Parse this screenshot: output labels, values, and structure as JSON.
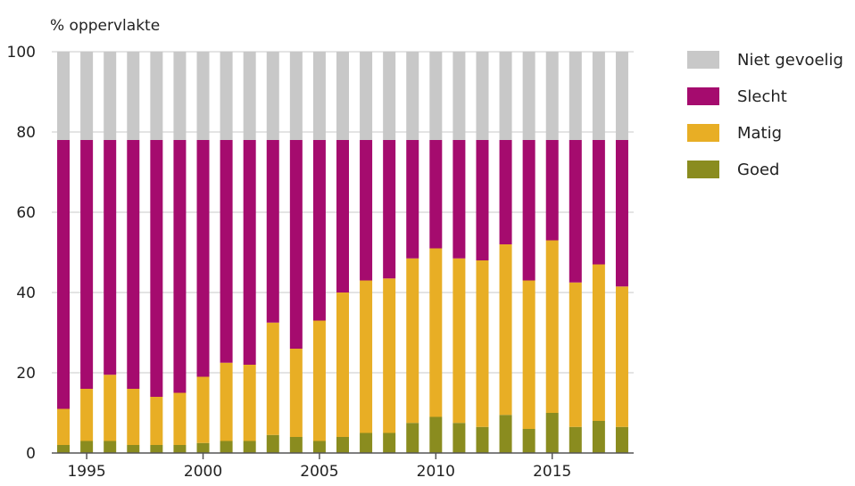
{
  "chart_data": {
    "type": "bar",
    "stacked": true,
    "ylabel": "% oppervlakte",
    "ylim": [
      0,
      100
    ],
    "yticks": [
      0,
      20,
      40,
      60,
      80,
      100
    ],
    "grid": true,
    "x": [
      1994,
      1995,
      1996,
      1997,
      1998,
      1999,
      2000,
      2001,
      2002,
      2003,
      2004,
      2005,
      2006,
      2007,
      2008,
      2009,
      2010,
      2011,
      2012,
      2013,
      2014,
      2015,
      2016,
      2017,
      2018
    ],
    "xticks": [
      {
        "value": 1995,
        "label": "1995"
      },
      {
        "value": 2000,
        "label": "2000"
      },
      {
        "value": 2005,
        "label": "2005"
      },
      {
        "value": 2010,
        "label": "2010"
      },
      {
        "value": 2015,
        "label": "2015"
      }
    ],
    "legend_position": "right",
    "series": [
      {
        "name": "Goed",
        "color": "#8a8c1f",
        "values": [
          2,
          3,
          3,
          2,
          2,
          2,
          2.5,
          3,
          3,
          4.5,
          4,
          3,
          4,
          5,
          5,
          7.5,
          9,
          7.5,
          6.5,
          9.5,
          6,
          10,
          6.5,
          8,
          6.5
        ]
      },
      {
        "name": "Matig",
        "color": "#e8ae25",
        "values": [
          9,
          13,
          16.5,
          14,
          12,
          13,
          16.5,
          19.5,
          19,
          28,
          22,
          30,
          36,
          38,
          38.5,
          41,
          42,
          41,
          41.5,
          42.5,
          37,
          43,
          36,
          39,
          35
        ]
      },
      {
        "name": "Slecht",
        "color": "#a50b6e",
        "values": [
          67,
          62,
          58.5,
          62,
          64,
          63,
          59,
          55.5,
          56,
          45.5,
          52,
          45,
          38,
          35,
          34.5,
          29.5,
          27,
          29.5,
          30,
          26,
          35,
          25,
          35.5,
          31,
          36.5
        ]
      },
      {
        "name": "Niet gevoelig",
        "color": "#c8c8c8",
        "values": [
          22,
          22,
          22,
          22,
          22,
          22,
          22,
          22,
          22,
          22,
          22,
          22,
          22,
          22,
          22,
          22,
          22,
          22,
          22,
          22,
          22,
          22,
          22,
          22,
          22
        ]
      }
    ]
  },
  "legend": [
    {
      "label": "Niet gevoelig",
      "color": "#c8c8c8"
    },
    {
      "label": "Slecht",
      "color": "#a50b6e"
    },
    {
      "label": "Matig",
      "color": "#e8ae25"
    },
    {
      "label": "Goed",
      "color": "#8a8c1f"
    }
  ]
}
